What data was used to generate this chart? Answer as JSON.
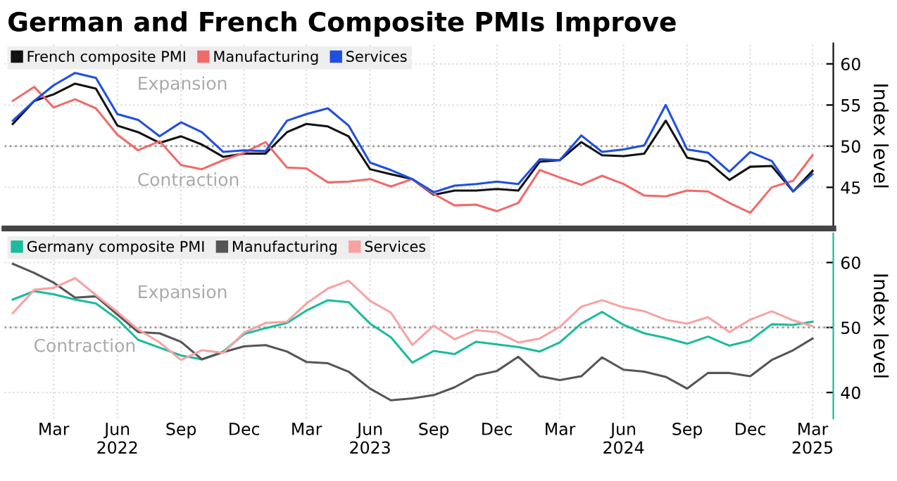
{
  "chart_data": [
    {
      "type": "line",
      "title": "German and French Composite PMIs Improve",
      "ylabel": "Index level",
      "x": [
        "2022-01",
        "2022-02",
        "2022-03",
        "2022-04",
        "2022-05",
        "2022-06",
        "2022-07",
        "2022-08",
        "2022-09",
        "2022-10",
        "2022-11",
        "2022-12",
        "2023-01",
        "2023-02",
        "2023-03",
        "2023-04",
        "2023-05",
        "2023-06",
        "2023-07",
        "2023-08",
        "2023-09",
        "2023-10",
        "2023-11",
        "2023-12",
        "2024-01",
        "2024-02",
        "2024-03",
        "2024-04",
        "2024-05",
        "2024-06",
        "2024-07",
        "2024-08",
        "2024-09",
        "2024-10",
        "2024-11",
        "2024-12",
        "2025-01",
        "2025-02",
        "2025-03"
      ],
      "series": [
        {
          "name": "French composite PMI",
          "color": "#111111",
          "values": [
            52.7,
            55.5,
            56.3,
            57.6,
            57.0,
            52.5,
            51.7,
            50.4,
            51.2,
            50.2,
            48.7,
            49.1,
            49.1,
            51.7,
            52.7,
            52.4,
            51.2,
            47.2,
            46.6,
            46.0,
            44.1,
            44.6,
            44.6,
            44.8,
            44.6,
            48.1,
            48.3,
            50.5,
            48.9,
            48.8,
            49.1,
            53.1,
            48.6,
            48.1,
            45.9,
            47.5,
            47.6,
            44.5,
            47.0
          ]
        },
        {
          "name": "Manufacturing",
          "color": "#f06a6a",
          "values": [
            55.5,
            57.2,
            54.7,
            55.7,
            54.6,
            51.4,
            49.5,
            50.6,
            47.7,
            47.2,
            48.3,
            49.2,
            50.5,
            47.4,
            47.3,
            45.6,
            45.7,
            46.0,
            45.1,
            46.0,
            44.2,
            42.8,
            42.9,
            42.1,
            43.1,
            47.1,
            46.2,
            45.3,
            46.4,
            45.4,
            44.0,
            43.9,
            44.6,
            44.5,
            43.1,
            41.9,
            45.0,
            45.8,
            48.9
          ]
        },
        {
          "name": "Services",
          "color": "#1f4fe0",
          "values": [
            53.1,
            55.5,
            57.4,
            58.9,
            58.3,
            53.9,
            53.2,
            51.2,
            52.9,
            51.7,
            49.3,
            49.5,
            49.4,
            53.1,
            53.9,
            54.6,
            52.5,
            48.0,
            47.1,
            46.0,
            44.4,
            45.2,
            45.4,
            45.7,
            45.4,
            48.4,
            48.3,
            51.3,
            49.3,
            49.6,
            50.1,
            55.0,
            49.6,
            49.2,
            46.9,
            49.3,
            48.2,
            44.5,
            46.6
          ]
        }
      ],
      "xlim": [
        "2021-12-20",
        "2025-03-31"
      ],
      "ylim": [
        40,
        62.5
      ],
      "yticks": [
        45,
        50,
        55,
        60
      ],
      "xticks": [
        {
          "value": "2022-03",
          "label": null
        },
        {
          "value": "2022-06",
          "label": null
        },
        {
          "value": "2022-09",
          "label": null
        },
        {
          "value": "2022-12",
          "label": null
        },
        {
          "value": "2023-03",
          "label": null
        },
        {
          "value": "2023-06",
          "label": null
        },
        {
          "value": "2023-09",
          "label": null
        },
        {
          "value": "2023-12",
          "label": null
        },
        {
          "value": "2024-03",
          "label": null
        },
        {
          "value": "2024-06",
          "label": null
        },
        {
          "value": "2024-09",
          "label": null
        },
        {
          "value": "2024-12",
          "label": null
        },
        {
          "value": "2025-03",
          "label": null
        }
      ],
      "tick_labels": "y",
      "grid": true,
      "legend": "top left",
      "marker": "none",
      "line_style": "solid",
      "ref_lines": [
        {
          "axis": "y",
          "value": 50,
          "color": "#999999",
          "line_style": "dotted"
        }
      ],
      "annotations": [
        "Expansion",
        "Contraction"
      ]
    },
    {
      "type": "line",
      "ylabel": "Index level",
      "x": [
        "2022-01",
        "2022-02",
        "2022-03",
        "2022-04",
        "2022-05",
        "2022-06",
        "2022-07",
        "2022-08",
        "2022-09",
        "2022-10",
        "2022-11",
        "2022-12",
        "2023-01",
        "2023-02",
        "2023-03",
        "2023-04",
        "2023-05",
        "2023-06",
        "2023-07",
        "2023-08",
        "2023-09",
        "2023-10",
        "2023-11",
        "2023-12",
        "2024-01",
        "2024-02",
        "2024-03",
        "2024-04",
        "2024-05",
        "2024-06",
        "2024-07",
        "2024-08",
        "2024-09",
        "2024-10",
        "2024-11",
        "2024-12",
        "2025-01",
        "2025-02",
        "2025-03"
      ],
      "series": [
        {
          "name": "Germany composite PMI",
          "color": "#1bbc9b",
          "values": [
            54.3,
            55.6,
            55.1,
            54.3,
            53.7,
            51.3,
            48.1,
            46.9,
            45.7,
            45.1,
            46.3,
            49.0,
            49.9,
            50.7,
            52.6,
            54.2,
            53.9,
            50.6,
            48.5,
            44.6,
            46.4,
            45.9,
            47.8,
            47.4,
            47.0,
            46.3,
            47.7,
            50.6,
            52.4,
            50.4,
            49.1,
            48.4,
            47.5,
            48.6,
            47.2,
            48.0,
            50.5,
            50.4,
            50.9
          ]
        },
        {
          "name": "Manufacturing",
          "color": "#555555",
          "values": [
            59.8,
            58.4,
            56.9,
            54.6,
            54.8,
            52.0,
            49.3,
            49.1,
            47.8,
            45.1,
            46.2,
            47.1,
            47.3,
            46.3,
            44.7,
            44.5,
            43.2,
            40.6,
            38.8,
            39.1,
            39.6,
            40.8,
            42.6,
            43.3,
            45.5,
            42.5,
            41.9,
            42.5,
            45.4,
            43.5,
            43.2,
            42.4,
            40.6,
            43.0,
            43.0,
            42.5,
            45.0,
            46.5,
            48.3
          ]
        },
        {
          "name": "Services",
          "color": "#f7a3a3",
          "values": [
            52.2,
            55.8,
            56.1,
            57.6,
            55.0,
            52.4,
            49.7,
            47.7,
            45.0,
            46.5,
            46.1,
            49.2,
            50.7,
            50.9,
            53.7,
            56.0,
            57.2,
            54.1,
            52.3,
            47.3,
            50.3,
            48.2,
            49.6,
            49.3,
            47.7,
            48.3,
            50.1,
            53.2,
            54.2,
            53.1,
            52.5,
            51.2,
            50.6,
            51.6,
            49.3,
            51.2,
            52.5,
            51.1,
            50.2
          ]
        }
      ],
      "xlim": [
        "2021-12-20",
        "2025-03-31"
      ],
      "ylim": [
        36,
        64.5
      ],
      "yticks": [
        40,
        50,
        60
      ],
      "xticks": [
        {
          "value": "2022-03",
          "label": "Mar"
        },
        {
          "value": "2022-06",
          "label": "Jun\n2022"
        },
        {
          "value": "2022-09",
          "label": "Sep"
        },
        {
          "value": "2022-12",
          "label": "Dec"
        },
        {
          "value": "2023-03",
          "label": "Mar"
        },
        {
          "value": "2023-06",
          "label": "Jun\n2023"
        },
        {
          "value": "2023-09",
          "label": "Sep"
        },
        {
          "value": "2023-12",
          "label": "Dec"
        },
        {
          "value": "2024-03",
          "label": "Mar"
        },
        {
          "value": "2024-06",
          "label": "Jun\n2024"
        },
        {
          "value": "2024-09",
          "label": "Sep"
        },
        {
          "value": "2024-12",
          "label": "Dec"
        },
        {
          "value": "2025-03",
          "label": "Mar\n2025"
        }
      ],
      "grid": true,
      "legend": "top left",
      "marker": "none",
      "line_style": "solid",
      "ref_lines": [
        {
          "axis": "y",
          "value": 50,
          "color": "#999999",
          "line_style": "dotted"
        }
      ],
      "annotations": [
        "Expansion",
        "Contraction"
      ]
    }
  ]
}
